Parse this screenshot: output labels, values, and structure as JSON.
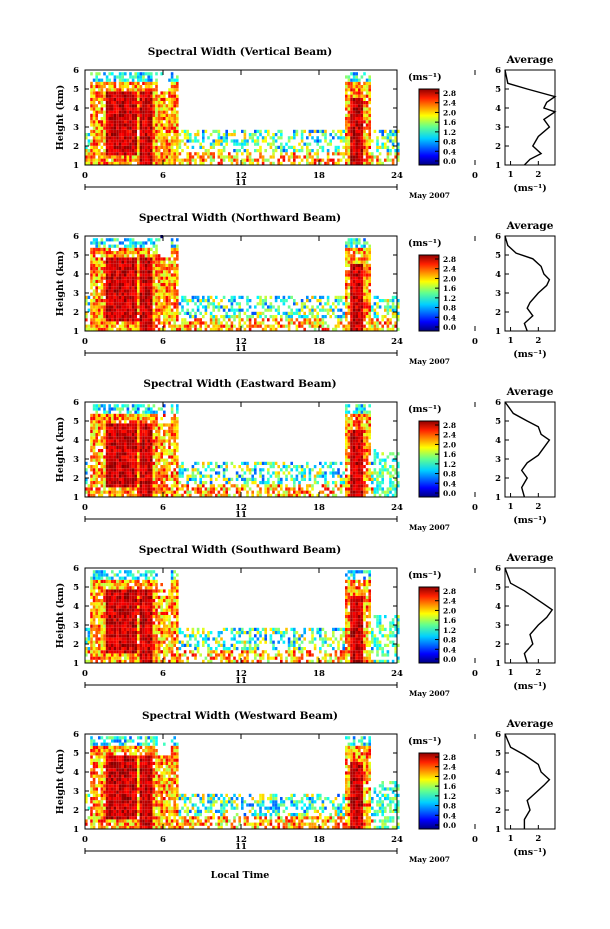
{
  "figure": {
    "date_label": "May 2007",
    "day_label": "11",
    "xlabel": "Local Time"
  },
  "chart_data": [
    {
      "type": "heatmap",
      "title": "Spectral Width (Vertical Beam)",
      "ylabel": "Height (km)",
      "xlim": [
        0,
        24
      ],
      "ylim": [
        1,
        6
      ],
      "xticks": [
        "0",
        "6",
        "12",
        "18",
        "24",
        "0"
      ],
      "yticks": [
        "1",
        "2",
        "3",
        "4",
        "5",
        "6"
      ],
      "colorbar": {
        "unit_label": "(ms⁻¹)",
        "ticks": [
          "0.0",
          "0.4",
          "0.8",
          "1.2",
          "1.6",
          "2.0",
          "2.4",
          "2.8"
        ]
      },
      "average": {
        "title": "Average",
        "xlabel": "(ms⁻¹)",
        "xticks": [
          "1",
          "2"
        ],
        "xlim": [
          0.8,
          2.6
        ],
        "profile": [
          [
            1.5,
            1.0
          ],
          [
            1.7,
            1.3
          ],
          [
            2.1,
            1.6
          ],
          [
            1.8,
            2.0
          ],
          [
            2.0,
            2.5
          ],
          [
            2.4,
            3.0
          ],
          [
            2.2,
            3.4
          ],
          [
            2.6,
            3.8
          ],
          [
            2.2,
            4.0
          ],
          [
            2.3,
            4.3
          ],
          [
            2.6,
            4.6
          ],
          [
            1.6,
            5.0
          ],
          [
            0.9,
            5.3
          ],
          [
            0.8,
            6.0
          ]
        ]
      }
    },
    {
      "type": "heatmap",
      "title": "Spectral Width (Northward Beam)",
      "ylabel": "Height (km)",
      "xlim": [
        0,
        24
      ],
      "ylim": [
        1,
        6
      ],
      "xticks": [
        "0",
        "6",
        "12",
        "18",
        "24",
        "0"
      ],
      "yticks": [
        "1",
        "2",
        "3",
        "4",
        "5",
        "6"
      ],
      "colorbar": {
        "unit_label": "(ms⁻¹)",
        "ticks": [
          "0.0",
          "0.4",
          "0.8",
          "1.2",
          "1.6",
          "2.0",
          "2.4",
          "2.8"
        ]
      },
      "average": {
        "title": "Average",
        "xlabel": "(ms⁻¹)",
        "xticks": [
          "1",
          "2"
        ],
        "xlim": [
          0.8,
          2.6
        ],
        "profile": [
          [
            1.6,
            1.0
          ],
          [
            1.5,
            1.4
          ],
          [
            1.8,
            1.8
          ],
          [
            1.6,
            2.2
          ],
          [
            1.7,
            2.5
          ],
          [
            2.0,
            3.0
          ],
          [
            2.3,
            3.4
          ],
          [
            2.4,
            3.7
          ],
          [
            2.2,
            4.0
          ],
          [
            2.1,
            4.4
          ],
          [
            1.8,
            4.8
          ],
          [
            1.2,
            5.1
          ],
          [
            0.9,
            5.5
          ],
          [
            0.8,
            6.0
          ]
        ]
      }
    },
    {
      "type": "heatmap",
      "title": "Spectral Width (Eastward Beam)",
      "ylabel": "Height (km)",
      "xlim": [
        0,
        24
      ],
      "ylim": [
        1,
        6
      ],
      "xticks": [
        "0",
        "6",
        "12",
        "18",
        "24",
        "0"
      ],
      "yticks": [
        "1",
        "2",
        "3",
        "4",
        "5",
        "6"
      ],
      "colorbar": {
        "unit_label": "(ms⁻¹)",
        "ticks": [
          "0.0",
          "0.4",
          "0.8",
          "1.2",
          "1.6",
          "2.0",
          "2.4",
          "2.8"
        ]
      },
      "average": {
        "title": "Average",
        "xlabel": "(ms⁻¹)",
        "xticks": [
          "1",
          "2"
        ],
        "xlim": [
          0.8,
          2.6
        ],
        "profile": [
          [
            1.5,
            1.0
          ],
          [
            1.4,
            1.5
          ],
          [
            1.6,
            2.0
          ],
          [
            1.4,
            2.4
          ],
          [
            1.6,
            2.8
          ],
          [
            2.0,
            3.2
          ],
          [
            2.2,
            3.6
          ],
          [
            2.4,
            4.0
          ],
          [
            2.1,
            4.3
          ],
          [
            2.0,
            4.7
          ],
          [
            1.6,
            5.0
          ],
          [
            1.1,
            5.4
          ],
          [
            0.8,
            6.0
          ]
        ]
      }
    },
    {
      "type": "heatmap",
      "title": "Spectral Width (Southward Beam)",
      "ylabel": "Height (km)",
      "xlim": [
        0,
        24
      ],
      "ylim": [
        1,
        6
      ],
      "xticks": [
        "0",
        "6",
        "12",
        "18",
        "24",
        "0"
      ],
      "yticks": [
        "1",
        "2",
        "3",
        "4",
        "5",
        "6"
      ],
      "colorbar": {
        "unit_label": "(ms⁻¹)",
        "ticks": [
          "0.0",
          "0.4",
          "0.8",
          "1.2",
          "1.6",
          "2.0",
          "2.4",
          "2.8"
        ]
      },
      "average": {
        "title": "Average",
        "xlabel": "(ms⁻¹)",
        "xticks": [
          "1",
          "2"
        ],
        "xlim": [
          0.8,
          2.6
        ],
        "profile": [
          [
            1.6,
            1.0
          ],
          [
            1.5,
            1.5
          ],
          [
            1.8,
            2.0
          ],
          [
            1.7,
            2.5
          ],
          [
            2.0,
            3.0
          ],
          [
            2.3,
            3.4
          ],
          [
            2.5,
            3.8
          ],
          [
            2.2,
            4.1
          ],
          [
            1.9,
            4.4
          ],
          [
            1.5,
            4.8
          ],
          [
            1.0,
            5.2
          ],
          [
            0.8,
            6.0
          ]
        ]
      }
    },
    {
      "type": "heatmap",
      "title": "Spectral Width (Westward Beam)",
      "ylabel": "Height (km)",
      "xlim": [
        0,
        24
      ],
      "ylim": [
        1,
        6
      ],
      "xticks": [
        "0",
        "6",
        "12",
        "18",
        "24",
        "0"
      ],
      "yticks": [
        "1",
        "2",
        "3",
        "4",
        "5",
        "6"
      ],
      "colorbar": {
        "unit_label": "(ms⁻¹)",
        "ticks": [
          "0.0",
          "0.4",
          "0.8",
          "1.2",
          "1.6",
          "2.0",
          "2.4",
          "2.8"
        ]
      },
      "average": {
        "title": "Average",
        "xlabel": "(ms⁻¹)",
        "xticks": [
          "1",
          "2"
        ],
        "xlim": [
          0.8,
          2.6
        ],
        "profile": [
          [
            1.5,
            1.0
          ],
          [
            1.5,
            1.5
          ],
          [
            1.7,
            2.0
          ],
          [
            1.6,
            2.5
          ],
          [
            1.9,
            2.9
          ],
          [
            2.2,
            3.3
          ],
          [
            2.4,
            3.6
          ],
          [
            2.1,
            4.0
          ],
          [
            2.0,
            4.4
          ],
          [
            1.5,
            4.9
          ],
          [
            1.0,
            5.3
          ],
          [
            0.8,
            6.0
          ]
        ]
      }
    }
  ]
}
